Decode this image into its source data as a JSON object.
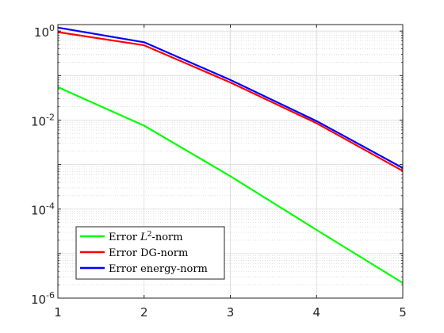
{
  "chart_data": {
    "type": "line",
    "x_scale": "linear",
    "y_scale": "log",
    "xlim": [
      1,
      5
    ],
    "ylim": [
      1e-06,
      1.4
    ],
    "grid": true,
    "minor_grid": true,
    "legend_position": "bottom-left",
    "x_ticks": [
      "1",
      "2",
      "3",
      "4",
      "5"
    ],
    "y_ticks": [
      {
        "value": 1,
        "base": "10",
        "exp": "0"
      },
      {
        "value": 0.01,
        "base": "10",
        "exp": "-2"
      },
      {
        "value": 0.0001,
        "base": "10",
        "exp": "-4"
      },
      {
        "value": 1e-06,
        "base": "10",
        "exp": "-6"
      }
    ],
    "x": [
      1,
      2,
      3,
      4,
      5
    ],
    "series": [
      {
        "legend_prefix": "Error ",
        "legend_math": "L",
        "legend_sup": "2",
        "legend_suffix": "-norm",
        "color": "#00ff00",
        "values": [
          0.055,
          0.0075,
          0.00055,
          3.4e-05,
          2.2e-06
        ]
      },
      {
        "legend_prefix": "Error DG-norm",
        "legend_math": "",
        "legend_sup": "",
        "legend_suffix": "",
        "color": "#ff0000",
        "values": [
          0.95,
          0.48,
          0.07,
          0.0085,
          0.00072
        ]
      },
      {
        "legend_prefix": "Error energy-norm",
        "legend_math": "",
        "legend_sup": "",
        "legend_suffix": "",
        "color": "#0000ff",
        "values": [
          1.2,
          0.56,
          0.08,
          0.0095,
          0.00084
        ]
      }
    ]
  }
}
